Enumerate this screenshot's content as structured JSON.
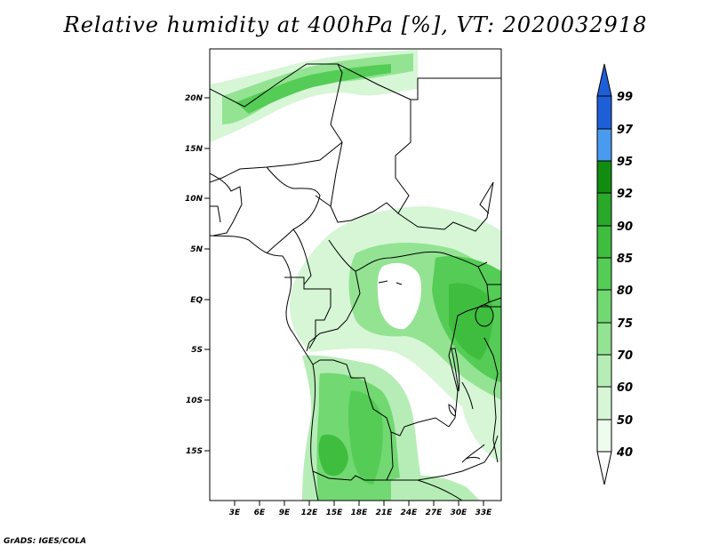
{
  "title": "Relative humidity at 400hPa [%], VT: 2020032918",
  "credit": "GrADS: IGES/COLA",
  "map": {
    "lat_labels": [
      "20N",
      "15N",
      "10N",
      "5N",
      "EQ",
      "5S",
      "10S",
      "15S"
    ],
    "lon_labels": [
      "3E",
      "6E",
      "9E",
      "12E",
      "15E",
      "18E",
      "21E",
      "24E",
      "27E",
      "30E",
      "33E"
    ]
  },
  "colorbar": {
    "levels": [
      "99",
      "97",
      "95",
      "92",
      "90",
      "85",
      "80",
      "75",
      "70",
      "60",
      "50",
      "40"
    ],
    "colors": [
      "#1e5fd8",
      "#2f7fe6",
      "#4a9bf0",
      "#118c11",
      "#2aa82a",
      "#3fbd3f",
      "#55cc55",
      "#72d872",
      "#93e393",
      "#b6edb6",
      "#d6f6d6",
      "#eefcee"
    ]
  }
}
